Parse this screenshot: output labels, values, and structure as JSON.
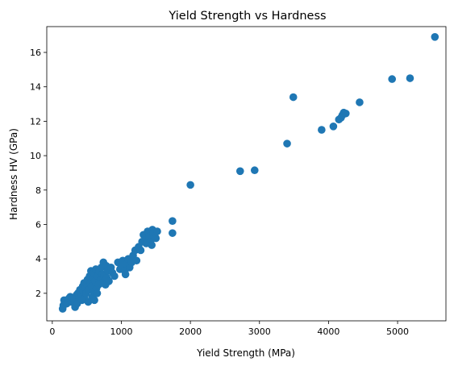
{
  "chart_data": {
    "type": "scatter",
    "title": "Yield Strength vs Hardness",
    "xlabel": "Yield Strength (MPa)",
    "ylabel": "Hardness HV (GPa)",
    "xlim": [
      -80,
      5700
    ],
    "ylim": [
      0.4,
      17.5
    ],
    "x_ticks": [
      0,
      1000,
      2000,
      3000,
      4000,
      5000
    ],
    "y_ticks": [
      2,
      4,
      6,
      8,
      10,
      12,
      14,
      16
    ],
    "x_tick_labels": [
      "0",
      "1000",
      "2000",
      "3000",
      "4000",
      "5000"
    ],
    "y_tick_labels": [
      "2",
      "4",
      "6",
      "8",
      "10",
      "12",
      "14",
      "16"
    ],
    "grid": false,
    "legend": "none",
    "marker_color": "#1f77b4",
    "series": [
      {
        "points": [
          [
            150,
            1.1
          ],
          [
            160,
            1.3
          ],
          [
            170,
            1.6
          ],
          [
            190,
            1.5
          ],
          [
            210,
            1.4
          ],
          [
            240,
            1.7
          ],
          [
            260,
            1.8
          ],
          [
            280,
            1.5
          ],
          [
            300,
            1.7
          ],
          [
            320,
            1.6
          ],
          [
            330,
            1.2
          ],
          [
            350,
            1.9
          ],
          [
            360,
            1.4
          ],
          [
            370,
            2.0
          ],
          [
            390,
            1.8
          ],
          [
            400,
            2.2
          ],
          [
            420,
            1.9
          ],
          [
            430,
            1.6
          ],
          [
            440,
            2.4
          ],
          [
            450,
            2.1
          ],
          [
            460,
            2.6
          ],
          [
            470,
            1.7
          ],
          [
            480,
            2.3
          ],
          [
            490,
            2.0
          ],
          [
            500,
            2.5
          ],
          [
            510,
            2.8
          ],
          [
            520,
            1.5
          ],
          [
            530,
            2.2
          ],
          [
            540,
            3.0
          ],
          [
            550,
            2.6
          ],
          [
            560,
            3.3
          ],
          [
            570,
            2.4
          ],
          [
            580,
            1.8
          ],
          [
            590,
            2.9
          ],
          [
            600,
            2.1
          ],
          [
            600,
            3.2
          ],
          [
            610,
            1.6
          ],
          [
            620,
            2.7
          ],
          [
            630,
            3.4
          ],
          [
            640,
            2.3
          ],
          [
            650,
            2.0
          ],
          [
            660,
            3.0
          ],
          [
            670,
            2.5
          ],
          [
            680,
            3.3
          ],
          [
            700,
            2.8
          ],
          [
            710,
            3.5
          ],
          [
            720,
            2.6
          ],
          [
            730,
            3.1
          ],
          [
            740,
            3.8
          ],
          [
            750,
            3.0
          ],
          [
            770,
            2.5
          ],
          [
            780,
            3.6
          ],
          [
            790,
            2.9
          ],
          [
            800,
            3.3
          ],
          [
            820,
            2.7
          ],
          [
            850,
            3.5
          ],
          [
            870,
            3.2
          ],
          [
            900,
            3.0
          ],
          [
            950,
            3.8
          ],
          [
            980,
            3.4
          ],
          [
            1000,
            3.6
          ],
          [
            1020,
            3.9
          ],
          [
            1050,
            3.3
          ],
          [
            1060,
            3.1
          ],
          [
            1080,
            3.7
          ],
          [
            1100,
            4.0
          ],
          [
            1120,
            3.5
          ],
          [
            1150,
            3.8
          ],
          [
            1170,
            4.2
          ],
          [
            1200,
            4.5
          ],
          [
            1220,
            3.9
          ],
          [
            1250,
            4.7
          ],
          [
            1280,
            4.5
          ],
          [
            1300,
            5.0
          ],
          [
            1320,
            5.4
          ],
          [
            1340,
            5.1
          ],
          [
            1360,
            4.9
          ],
          [
            1380,
            5.6
          ],
          [
            1400,
            5.3
          ],
          [
            1420,
            5.0
          ],
          [
            1440,
            4.8
          ],
          [
            1450,
            5.7
          ],
          [
            1460,
            5.5
          ],
          [
            1480,
            5.3
          ],
          [
            1500,
            5.2
          ],
          [
            1520,
            5.6
          ],
          [
            1740,
            6.2
          ],
          [
            1740,
            5.5
          ],
          [
            2000,
            8.3
          ],
          [
            2720,
            9.1
          ],
          [
            2930,
            9.15
          ],
          [
            3400,
            10.7
          ],
          [
            3490,
            13.4
          ],
          [
            3900,
            11.5
          ],
          [
            4070,
            11.7
          ],
          [
            4150,
            12.1
          ],
          [
            4180,
            12.2
          ],
          [
            4200,
            12.35
          ],
          [
            4220,
            12.5
          ],
          [
            4250,
            12.45
          ],
          [
            4450,
            13.1
          ],
          [
            4920,
            14.45
          ],
          [
            5180,
            14.5
          ],
          [
            5540,
            16.9
          ]
        ]
      }
    ]
  }
}
